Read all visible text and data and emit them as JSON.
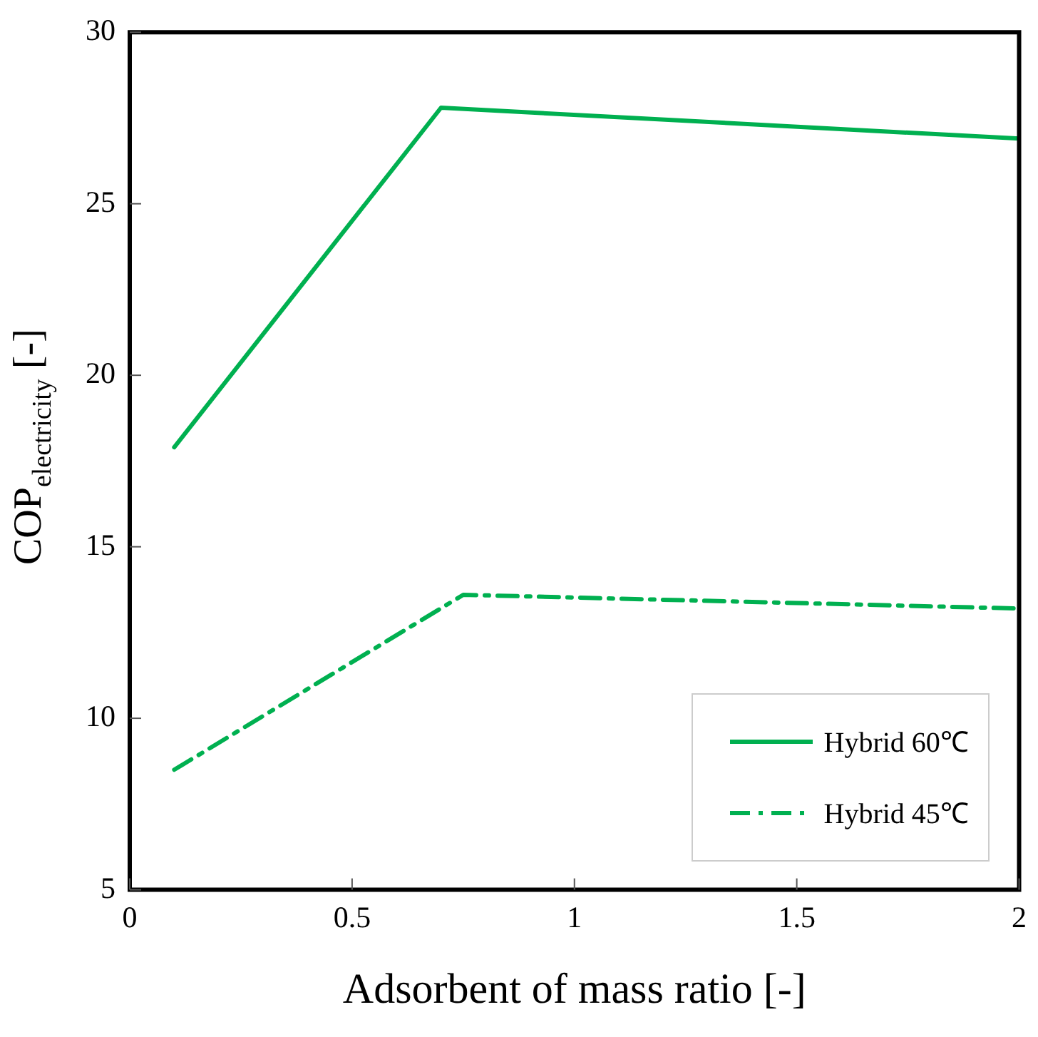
{
  "chart_data": {
    "type": "line",
    "xlabel": "Adsorbent of mass ratio [-]",
    "ylabel": "COP$_{electricity}$ [-]",
    "xlim": [
      0,
      2
    ],
    "xticks": [
      0,
      0.5,
      1,
      1.5,
      2
    ],
    "ylim": [
      5,
      30
    ],
    "yticks": [
      5,
      10,
      15,
      20,
      25,
      30
    ],
    "grid": false,
    "legend": "bottom right",
    "marker": "none",
    "series": [
      {
        "name": "Hybrid 60℃",
        "color": "#00b050",
        "line_style": "solid",
        "x": [
          0.1,
          0.7,
          2
        ],
        "values": [
          17.9,
          27.8,
          26.9
        ]
      },
      {
        "name": "Hybrid 45℃",
        "color": "#00b050",
        "line_style": "dashed",
        "x": [
          0.1,
          0.75,
          2
        ],
        "values": [
          8.5,
          13.6,
          13.2
        ]
      }
    ]
  }
}
